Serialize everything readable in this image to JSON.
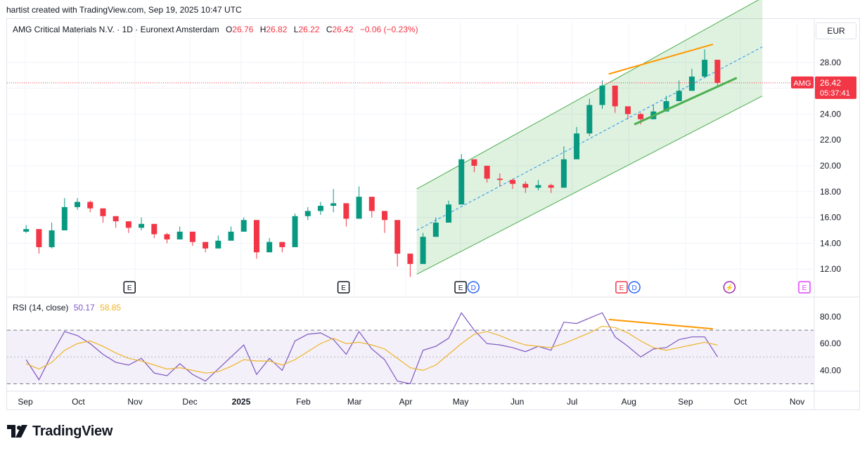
{
  "caption": "hartist created with TradingView.com, Sep 19, 2025 10:47 UTC",
  "legend": {
    "title": "AMG Critical Materials N.V. · 1D · Euronext Amsterdam",
    "o_label": "O",
    "o": "26.76",
    "h_label": "H",
    "h": "26.82",
    "l_label": "L",
    "l": "26.22",
    "c_label": "C",
    "c": "26.42",
    "change": "−0.06 (−0.23%)"
  },
  "currency_button": "EUR",
  "price_tag": {
    "symbol": "AMG",
    "price": "26.42",
    "countdown": "05:37:41",
    "color": "#f23645"
  },
  "rsi_legend": {
    "label": "RSI (14, close)",
    "rsi": "50.17",
    "ma": "58.85"
  },
  "events": [
    "E",
    "E",
    "E",
    "D",
    "E",
    "D",
    "⚡",
    "E"
  ],
  "branding": "TradingView",
  "colors": {
    "up": "#089981",
    "down": "#f23645",
    "channel": "#4caf50",
    "rsi": "#7e57c2",
    "rsi_ma": "#f0b429",
    "annotation": "#ff9800"
  },
  "chart_data": [
    {
      "type": "candlestick",
      "title": "AMG Critical Materials N.V. · 1D · Euronext Amsterdam",
      "x": [
        "2024-09-02",
        "2024-09-09",
        "2024-09-16",
        "2024-09-23",
        "2024-09-30",
        "2024-10-07",
        "2024-10-14",
        "2024-10-21",
        "2024-10-28",
        "2024-11-04",
        "2024-11-11",
        "2024-11-18",
        "2024-11-25",
        "2024-12-02",
        "2024-12-09",
        "2024-12-16",
        "2024-12-23",
        "2024-12-30",
        "2025-01-06",
        "2025-01-13",
        "2025-01-20",
        "2025-01-27",
        "2025-02-03",
        "2025-02-10",
        "2025-02-17",
        "2025-02-24",
        "2025-03-03",
        "2025-03-10",
        "2025-03-17",
        "2025-03-24",
        "2025-03-31",
        "2025-04-07",
        "2025-04-14",
        "2025-04-21",
        "2025-04-28",
        "2025-05-05",
        "2025-05-12",
        "2025-05-19",
        "2025-05-26",
        "2025-06-02",
        "2025-06-09",
        "2025-06-16",
        "2025-06-23",
        "2025-06-30",
        "2025-07-07",
        "2025-07-14",
        "2025-07-21",
        "2025-07-28",
        "2025-08-04",
        "2025-08-11",
        "2025-08-18",
        "2025-08-25",
        "2025-09-01",
        "2025-09-08",
        "2025-09-15"
      ],
      "close": [
        15.1,
        13.7,
        15.0,
        16.8,
        17.2,
        16.7,
        16.1,
        15.7,
        15.2,
        15.5,
        14.7,
        14.3,
        14.9,
        14.1,
        13.6,
        14.2,
        14.9,
        15.8,
        13.3,
        14.1,
        13.7,
        16.1,
        16.5,
        16.9,
        17.1,
        15.9,
        17.6,
        16.5,
        15.8,
        13.2,
        12.4,
        14.5,
        15.6,
        17.0,
        20.5,
        20.0,
        19.0,
        18.9,
        18.6,
        18.3,
        18.5,
        18.3,
        20.5,
        22.5,
        24.7,
        26.2,
        24.6,
        24.0,
        23.6,
        24.2,
        25.0,
        25.8,
        26.9,
        28.2,
        26.42
      ],
      "high": [
        15.4,
        14.2,
        15.6,
        17.5,
        17.5,
        17.3,
        16.5,
        16.1,
        15.6,
        16.0,
        15.2,
        14.8,
        15.3,
        14.6,
        14.0,
        14.6,
        15.3,
        16.0,
        15.1,
        14.4,
        14.0,
        16.3,
        16.8,
        17.2,
        18.2,
        16.5,
        18.4,
        17.3,
        16.2,
        14.5,
        13.0,
        14.8,
        16.0,
        17.3,
        20.9,
        20.3,
        19.5,
        19.4,
        19.0,
        18.8,
        18.9,
        18.6,
        21.5,
        23.0,
        25.2,
        26.6,
        25.8,
        24.5,
        24.1,
        24.7,
        25.4,
        26.6,
        27.5,
        29.0,
        26.82
      ],
      "low": [
        14.8,
        13.2,
        13.6,
        15.0,
        16.6,
        16.4,
        15.6,
        15.2,
        14.8,
        15.0,
        14.4,
        14.0,
        14.3,
        13.8,
        13.3,
        13.8,
        14.5,
        14.9,
        12.8,
        13.6,
        13.3,
        14.9,
        15.8,
        16.2,
        16.4,
        15.3,
        16.6,
        16.0,
        14.8,
        12.2,
        11.4,
        12.9,
        14.8,
        15.8,
        17.4,
        19.5,
        18.7,
        18.4,
        18.2,
        17.9,
        18.1,
        17.9,
        18.4,
        20.8,
        22.3,
        24.4,
        24.1,
        23.6,
        23.2,
        23.7,
        24.5,
        25.3,
        26.2,
        26.8,
        26.22
      ],
      "ylim": [
        10,
        30
      ],
      "y_ticks": [
        "12.00",
        "14.00",
        "16.00",
        "18.00",
        "20.00",
        "22.00",
        "24.00",
        "26.00",
        "28.00"
      ],
      "x_tick_labels": [
        "Sep",
        "Oct",
        "Nov",
        "Dec",
        "2025",
        "Feb",
        "Mar",
        "Apr",
        "May",
        "Jun",
        "Jul",
        "Aug",
        "Sep",
        "Oct",
        "Nov"
      ],
      "last_price": 26.42,
      "channel": {
        "lower": [
          [
            "2025-04-07",
            11.6
          ],
          [
            "2025-10-13",
            25.4
          ]
        ],
        "upper": [
          [
            "2025-04-07",
            18.2
          ],
          [
            "2025-10-13",
            33.0
          ]
        ],
        "mid": [
          [
            "2025-04-07",
            15.0
          ],
          [
            "2025-10-13",
            29.2
          ]
        ]
      }
    },
    {
      "type": "line",
      "title": "RSI (14, close)",
      "x": [
        "2024-09-02",
        "2024-09-09",
        "2024-09-16",
        "2024-09-23",
        "2024-09-30",
        "2024-10-07",
        "2024-10-14",
        "2024-10-21",
        "2024-10-28",
        "2024-11-04",
        "2024-11-11",
        "2024-11-18",
        "2024-11-25",
        "2024-12-02",
        "2024-12-09",
        "2024-12-16",
        "2024-12-23",
        "2024-12-30",
        "2025-01-06",
        "2025-01-13",
        "2025-01-20",
        "2025-01-27",
        "2025-02-03",
        "2025-02-10",
        "2025-02-17",
        "2025-02-24",
        "2025-03-03",
        "2025-03-10",
        "2025-03-17",
        "2025-03-24",
        "2025-03-31",
        "2025-04-07",
        "2025-04-14",
        "2025-04-21",
        "2025-04-28",
        "2025-05-05",
        "2025-05-12",
        "2025-05-19",
        "2025-05-26",
        "2025-06-02",
        "2025-06-09",
        "2025-06-16",
        "2025-06-23",
        "2025-06-30",
        "2025-07-07",
        "2025-07-14",
        "2025-07-21",
        "2025-07-28",
        "2025-08-04",
        "2025-08-11",
        "2025-08-18",
        "2025-08-25",
        "2025-09-01",
        "2025-09-08",
        "2025-09-15"
      ],
      "series": [
        {
          "name": "RSI",
          "values": [
            48,
            33,
            52,
            69,
            66,
            60,
            52,
            46,
            44,
            49,
            38,
            36,
            45,
            37,
            32,
            41,
            50,
            59,
            37,
            49,
            40,
            62,
            67,
            68,
            63,
            52,
            69,
            56,
            48,
            32,
            30,
            55,
            58,
            64,
            83,
            70,
            60,
            59,
            57,
            54,
            58,
            55,
            76,
            75,
            79,
            83,
            65,
            58,
            50,
            56,
            57,
            63,
            65,
            65,
            50.17
          ]
        },
        {
          "name": "MA",
          "values": [
            45,
            41,
            46,
            55,
            60,
            62,
            58,
            53,
            49,
            47,
            44,
            41,
            42,
            40,
            38,
            39,
            43,
            48,
            47,
            47,
            44,
            48,
            54,
            60,
            64,
            60,
            61,
            59,
            56,
            49,
            42,
            40,
            44,
            52,
            60,
            67,
            69,
            66,
            62,
            59,
            58,
            57,
            60,
            64,
            68,
            73,
            72,
            68,
            62,
            57,
            55,
            57,
            59,
            61,
            58.85
          ]
        }
      ],
      "ylim": [
        25,
        90
      ],
      "y_ticks": [
        "40.00",
        "60.00",
        "80.00"
      ],
      "bands": [
        30,
        70
      ]
    }
  ]
}
